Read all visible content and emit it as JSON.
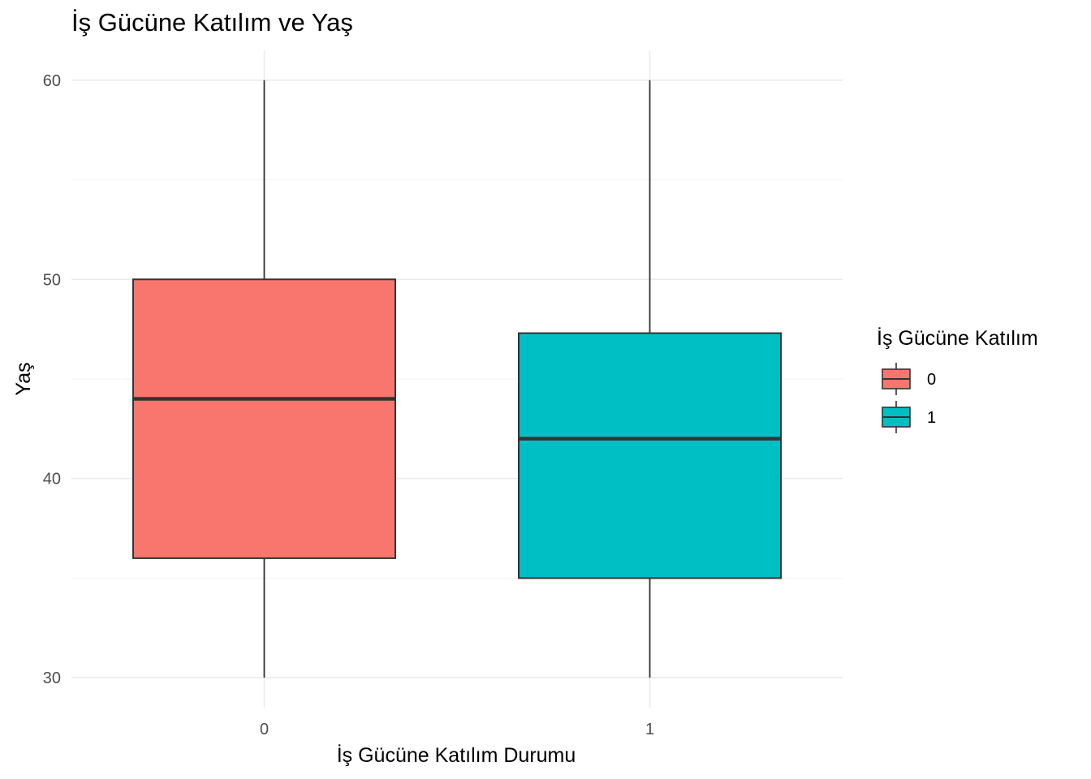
{
  "chart_data": {
    "type": "boxplot",
    "title": "İş Gücüne Katılım ve Yaş",
    "xlabel": "İş Gücüne Katılım Durumu",
    "ylabel": "Yaş",
    "ylim": [
      28.5,
      61.5
    ],
    "y_ticks": [
      30,
      40,
      50,
      60
    ],
    "categories": [
      "0",
      "1"
    ],
    "series": [
      {
        "category": "0",
        "color": "#F8766D",
        "whisker_low": 30,
        "q1": 36,
        "median": 44,
        "q3": 50,
        "whisker_high": 60
      },
      {
        "category": "1",
        "color": "#00BFC4",
        "whisker_low": 30,
        "q1": 35,
        "median": 42,
        "q3": 47.3,
        "whisker_high": 60
      }
    ],
    "legend": {
      "title": "İş Gücüne Katılım",
      "position": "right",
      "entries": [
        {
          "label": "0",
          "color": "#F8766D"
        },
        {
          "label": "1",
          "color": "#00BFC4"
        }
      ]
    },
    "grid": true
  }
}
